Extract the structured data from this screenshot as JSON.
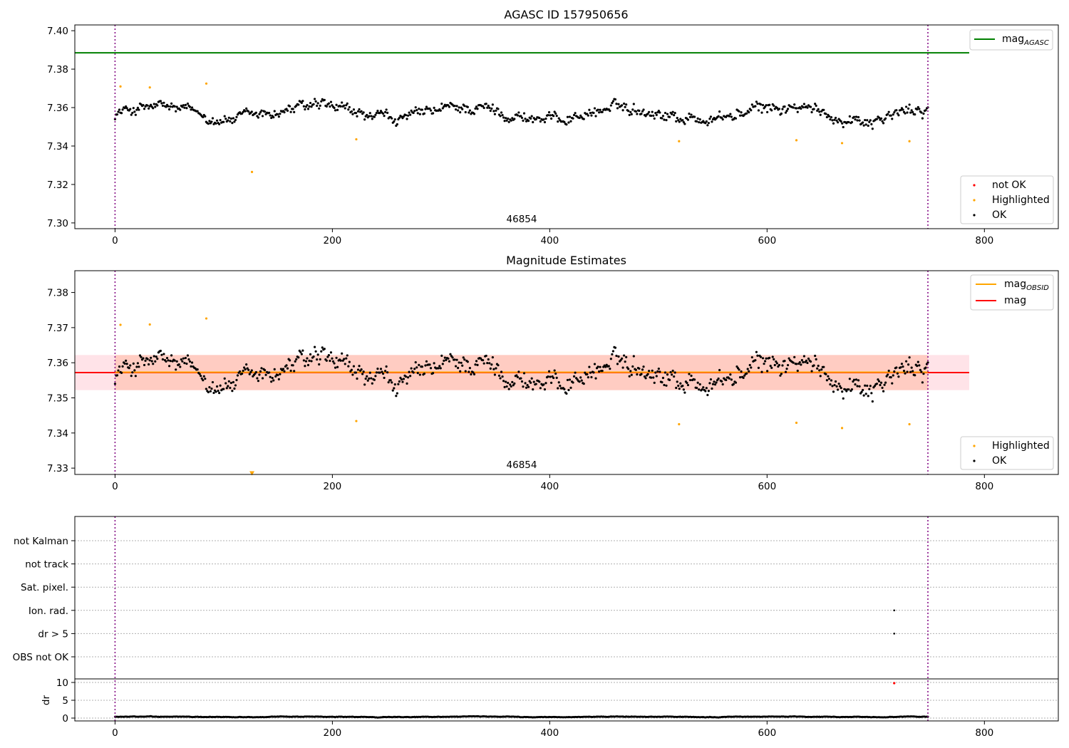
{
  "chart_data": [
    {
      "type": "scatter",
      "title": "AGASC ID 157950656",
      "xlim": [
        -37,
        868
      ],
      "ylim": [
        7.297,
        7.403
      ],
      "x_ticks": [
        "0",
        "200",
        "400",
        "600",
        "800"
      ],
      "y_ticks": [
        "7.30",
        "7.32",
        "7.34",
        "7.36",
        "7.38",
        "7.40"
      ],
      "grid": false,
      "annotation": "46854",
      "vlines": [
        0,
        748
      ],
      "legend_lines": [
        {
          "label": "mag",
          "subscript": "AGASC",
          "color": "#008000",
          "y": 7.3885,
          "x_range": [
            -37,
            786
          ]
        }
      ],
      "legend_points": [
        {
          "label": "not OK",
          "color": "#ff0000"
        },
        {
          "label": "Highlighted",
          "color": "#ffa500"
        },
        {
          "label": "OK",
          "color": "#000000"
        }
      ],
      "highlighted_points": [
        [
          5,
          7.371
        ],
        [
          32,
          7.3705
        ],
        [
          84,
          7.3725
        ],
        [
          126,
          7.3265
        ],
        [
          222,
          7.3435
        ],
        [
          519,
          7.3425
        ],
        [
          627,
          7.343
        ],
        [
          669,
          7.3415
        ],
        [
          731,
          7.3425
        ]
      ],
      "ok_series": {
        "n": 750,
        "x_start": 0,
        "x_end": 748,
        "mean": 7.357,
        "amplitude": 0.006,
        "noise": 0.003
      },
      "colors": {
        "ok": "#000000",
        "highlighted": "#ffa500",
        "vline": "#800080"
      }
    },
    {
      "type": "scatter",
      "title": "Magnitude Estimates",
      "xlim": [
        -37,
        868
      ],
      "ylim": [
        7.3282,
        7.3862
      ],
      "x_ticks": [
        "0",
        "200",
        "400",
        "600",
        "800"
      ],
      "y_ticks": [
        "7.33",
        "7.34",
        "7.35",
        "7.36",
        "7.37",
        "7.38"
      ],
      "grid": false,
      "annotation": "46854",
      "vlines": [
        0,
        748
      ],
      "bands": [
        {
          "y_low": 7.3522,
          "y_high": 7.3622,
          "x_range": [
            -37,
            786
          ],
          "color": "#ffc0cb",
          "opacity": 0.45
        },
        {
          "y_low": 7.3522,
          "y_high": 7.3622,
          "x_range": [
            0,
            748
          ],
          "color": "#ffa07a",
          "opacity": 0.35
        }
      ],
      "legend_lines": [
        {
          "label": "mag",
          "subscript": "OBSID",
          "color": "#ffa500",
          "y": 7.3573,
          "x_range": [
            0,
            748
          ]
        },
        {
          "label": "mag",
          "subscript": "",
          "color": "#ff0000",
          "y": 7.3572,
          "x_range": [
            -37,
            786
          ]
        }
      ],
      "legend_points": [
        {
          "label": "Highlighted",
          "color": "#ffa500"
        },
        {
          "label": "OK",
          "color": "#000000"
        }
      ],
      "highlighted_points": [
        [
          5,
          7.3708
        ],
        [
          32,
          7.3709
        ],
        [
          84,
          7.3726
        ],
        [
          222,
          7.3434
        ],
        [
          519,
          7.3425
        ],
        [
          627,
          7.3429
        ],
        [
          669,
          7.3414
        ],
        [
          731,
          7.3425
        ]
      ],
      "offscale_marker": {
        "x": 126,
        "y": 7.3285,
        "color": "#ffa500"
      },
      "ok_series": {
        "n": 750,
        "x_start": 0,
        "x_end": 748,
        "mean": 7.357,
        "amplitude": 0.006,
        "noise": 0.003
      },
      "colors": {
        "ok": "#000000",
        "highlighted": "#ffa500",
        "vline": "#800080"
      }
    },
    {
      "type": "scatter",
      "title": "",
      "xlim": [
        -37,
        868
      ],
      "x_ticks": [
        "0",
        "200",
        "400",
        "600",
        "800"
      ],
      "flag_categories": [
        "not Kalman",
        "not track",
        "Sat. pixel.",
        "Ion. rad.",
        "dr > 5",
        "OBS not OK"
      ],
      "flag_points": [
        {
          "category": "Ion. rad.",
          "x": 717
        },
        {
          "category": "dr > 5",
          "x": 717
        }
      ],
      "dr": {
        "ylabel": "dr",
        "ylim": [
          -0.8,
          11
        ],
        "y_ticks": [
          "0",
          "5",
          "10"
        ],
        "series": {
          "n": 750,
          "x_start": 0,
          "x_end": 748,
          "mean": 0.35,
          "amplitude": 0.15,
          "noise": 0.08
        },
        "outlier": {
          "x": 717,
          "y": 9.8,
          "color": "#ff0000"
        }
      },
      "vlines": [
        0,
        748
      ],
      "colors": {
        "ok": "#000000",
        "vline": "#800080",
        "grid": "#b0b0b0"
      }
    }
  ]
}
